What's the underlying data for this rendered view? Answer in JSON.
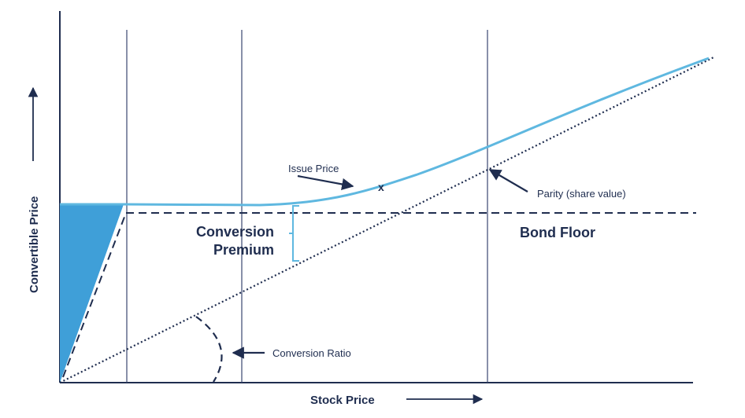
{
  "chart_data": {
    "type": "line",
    "xlabel": "Stock Price",
    "ylabel": "Convertible Price",
    "grid": false,
    "annotations": {
      "issue_price": "Issue Price",
      "parity": "Parity (share value)",
      "conversion_premium_line1": "Conversion",
      "conversion_premium_line2": "Premium",
      "bond_floor": "Bond Floor",
      "conversion_ratio": "Conversion Ratio",
      "issue_marker": "x"
    },
    "colors": {
      "convertible_curve": "#5fb8e0",
      "fill": "#3f9fd8",
      "lines": "#1f2d4f",
      "verticals": "#3a4670"
    }
  }
}
